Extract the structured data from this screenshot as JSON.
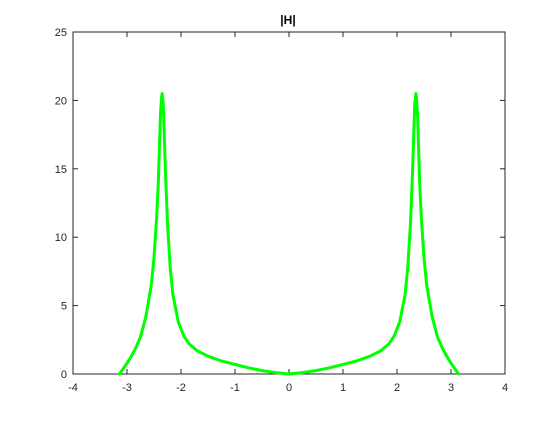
{
  "chart_data": {
    "type": "line",
    "title": "|H|",
    "xlabel": "",
    "ylabel": "",
    "xlim": [
      -4,
      4
    ],
    "ylim": [
      0,
      25
    ],
    "xticks": [
      -4,
      -3,
      -2,
      -1,
      0,
      1,
      2,
      3,
      4
    ],
    "yticks": [
      0,
      5,
      10,
      15,
      20,
      25
    ],
    "xtick_labels": [
      "-4",
      "-3",
      "-2",
      "-1",
      "0",
      "1",
      "2",
      "3",
      "4"
    ],
    "ytick_labels": [
      "0",
      "5",
      "10",
      "15",
      "20",
      "25"
    ],
    "grid": false,
    "legend": false,
    "series": [
      {
        "color": "#00ff00",
        "x": [
          -3.14,
          -3.05,
          -2.95,
          -2.85,
          -2.75,
          -2.65,
          -2.55,
          -2.5,
          -2.45,
          -2.42,
          -2.4,
          -2.38,
          -2.36,
          -2.35,
          -2.33,
          -2.31,
          -2.29,
          -2.25,
          -2.2,
          -2.15,
          -2.05,
          -1.95,
          -1.85,
          -1.7,
          -1.5,
          -1.25,
          -1.0,
          -0.75,
          -0.5,
          -0.25,
          0.0,
          0.25,
          0.5,
          0.75,
          1.0,
          1.25,
          1.5,
          1.7,
          1.85,
          1.95,
          2.05,
          2.15,
          2.2,
          2.25,
          2.29,
          2.31,
          2.33,
          2.35,
          2.36,
          2.38,
          2.4,
          2.42,
          2.45,
          2.5,
          2.55,
          2.65,
          2.75,
          2.85,
          2.95,
          3.05,
          3.14
        ],
        "y": [
          0.0,
          0.5,
          1.1,
          1.8,
          2.7,
          4.2,
          6.5,
          8.5,
          11.5,
          14.0,
          16.5,
          19.0,
          20.2,
          20.5,
          19.8,
          17.5,
          15.0,
          11.0,
          7.8,
          5.8,
          3.8,
          2.8,
          2.2,
          1.7,
          1.3,
          0.95,
          0.7,
          0.45,
          0.25,
          0.1,
          0.0,
          0.1,
          0.25,
          0.45,
          0.7,
          0.95,
          1.3,
          1.7,
          2.2,
          2.8,
          3.8,
          5.8,
          7.8,
          11.0,
          15.0,
          17.5,
          19.8,
          20.5,
          20.2,
          19.0,
          16.5,
          14.0,
          11.5,
          8.5,
          6.5,
          4.2,
          2.7,
          1.8,
          1.1,
          0.5,
          0.0
        ]
      }
    ]
  }
}
